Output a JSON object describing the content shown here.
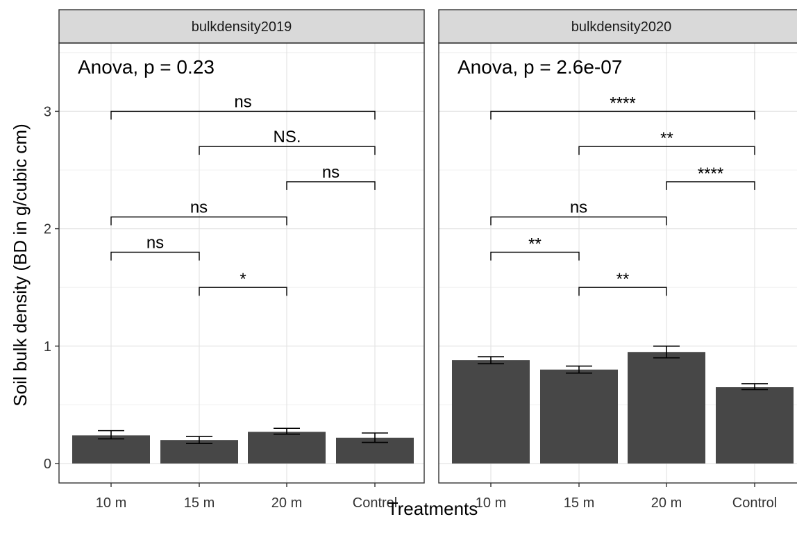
{
  "chart_data": {
    "type": "bar",
    "xlabel": "Treatments",
    "ylabel": "Soil bulk density (BD in g/cubic cm)",
    "ylim": [
      0,
      3.55
    ],
    "yticks": [
      "0",
      "1",
      "2",
      "3"
    ],
    "categories": [
      "10 m",
      "15 m",
      "20 m",
      "Control"
    ],
    "grid": true,
    "bar_color": "#474747",
    "panels": [
      {
        "strip": "bulkdensity2019",
        "anova": "Anova, p = 0.23",
        "values": [
          0.24,
          0.2,
          0.27,
          0.22
        ],
        "err_low": [
          0.21,
          0.17,
          0.25,
          0.18
        ],
        "err_high": [
          0.28,
          0.23,
          0.3,
          0.26
        ],
        "comparisons": [
          {
            "from": "10 m",
            "to": "Control",
            "y": 3.0,
            "label": "ns"
          },
          {
            "from": "15 m",
            "to": "Control",
            "y": 2.7,
            "label": "NS."
          },
          {
            "from": "20 m",
            "to": "Control",
            "y": 2.4,
            "label": "ns"
          },
          {
            "from": "10 m",
            "to": "20 m",
            "y": 2.1,
            "label": "ns"
          },
          {
            "from": "10 m",
            "to": "15 m",
            "y": 1.8,
            "label": "ns"
          },
          {
            "from": "15 m",
            "to": "20 m",
            "y": 1.5,
            "label": "*"
          }
        ]
      },
      {
        "strip": "bulkdensity2020",
        "anova": "Anova, p = 2.6e-07",
        "values": [
          0.88,
          0.8,
          0.95,
          0.65
        ],
        "err_low": [
          0.85,
          0.77,
          0.9,
          0.63
        ],
        "err_high": [
          0.91,
          0.83,
          1.0,
          0.68
        ],
        "comparisons": [
          {
            "from": "10 m",
            "to": "Control",
            "y": 3.0,
            "label": "****"
          },
          {
            "from": "15 m",
            "to": "Control",
            "y": 2.7,
            "label": "**"
          },
          {
            "from": "20 m",
            "to": "Control",
            "y": 2.4,
            "label": "****"
          },
          {
            "from": "10 m",
            "to": "20 m",
            "y": 2.1,
            "label": "ns"
          },
          {
            "from": "10 m",
            "to": "15 m",
            "y": 1.8,
            "label": "**"
          },
          {
            "from": "15 m",
            "to": "20 m",
            "y": 1.5,
            "label": "**"
          }
        ]
      }
    ]
  }
}
